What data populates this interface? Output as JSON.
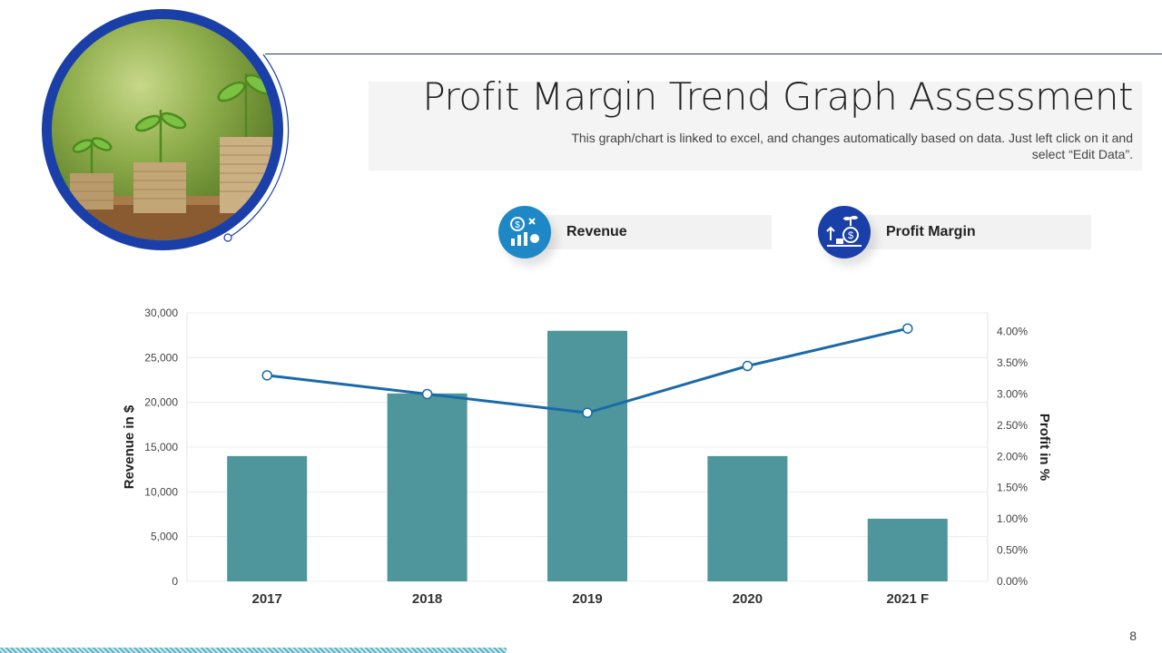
{
  "header": {
    "title": "Profit Margin Trend Graph Assessment",
    "subtitle": "This graph/chart is linked to excel, and changes automatically based on data. Just left click on it and select “Edit Data”."
  },
  "legend": {
    "revenue": {
      "label": "Revenue",
      "icon": "revenue-growth-icon",
      "color": "#1e88c7"
    },
    "profit": {
      "label": "Profit Margin",
      "icon": "profit-growth-icon",
      "color": "#1a3fa8"
    }
  },
  "chart_data": {
    "type": "bar",
    "categories": [
      "2017",
      "2018",
      "2019",
      "2020",
      "2021 F"
    ],
    "series": [
      {
        "name": "Revenue",
        "type": "bar",
        "axis": "left",
        "color": "#4e969c",
        "values": [
          14000,
          21000,
          28000,
          14000,
          7000
        ]
      },
      {
        "name": "Profit Margin",
        "type": "line",
        "axis": "right",
        "color": "#1b6aa8",
        "values": [
          3.3,
          3.0,
          2.7,
          3.45,
          4.05
        ]
      }
    ],
    "ylabel": "Revenue in $",
    "ylabel_right": "Profit in %",
    "ylim": [
      0,
      30000
    ],
    "ylim_right": [
      0,
      4.3
    ],
    "yticks": [
      "0",
      "5,000",
      "10,000",
      "15,000",
      "20,000",
      "25,000",
      "30,000"
    ],
    "yticks_right": [
      "0.00%",
      "0.50%",
      "1.00%",
      "1.50%",
      "2.00%",
      "2.50%",
      "3.00%",
      "3.50%",
      "4.00%"
    ],
    "grid": true
  },
  "footer": {
    "page_number": "8"
  }
}
